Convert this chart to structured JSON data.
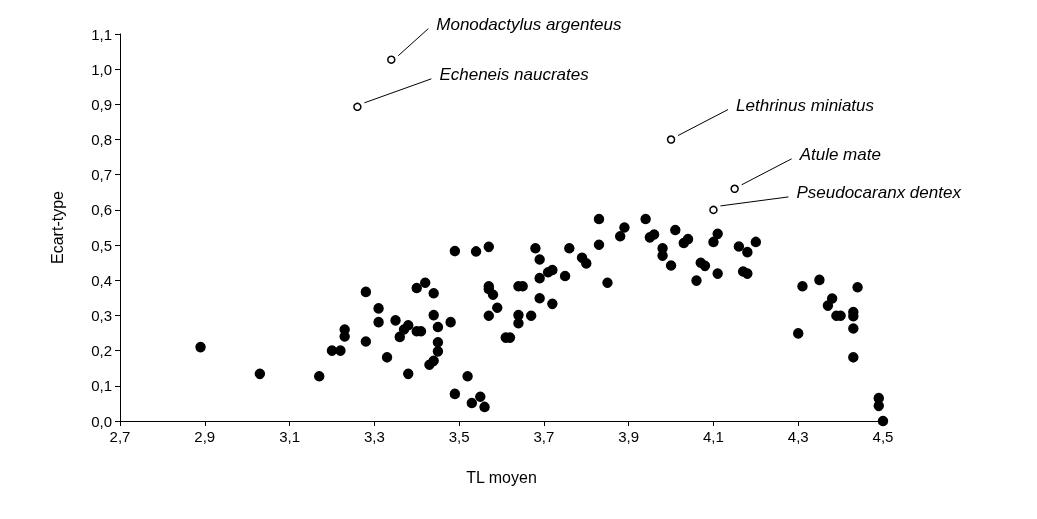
{
  "chart_data": {
    "type": "scatter",
    "xlabel": "TL moyen",
    "ylabel": "Ecart-type",
    "xlim": [
      2.7,
      4.5
    ],
    "ylim": [
      0,
      1.1
    ],
    "xticks": [
      {
        "value": 2.7,
        "label": "2,7"
      },
      {
        "value": 2.9,
        "label": "2,9"
      },
      {
        "value": 3.1,
        "label": "3,1"
      },
      {
        "value": 3.3,
        "label": "3,3"
      },
      {
        "value": 3.5,
        "label": "3,5"
      },
      {
        "value": 3.7,
        "label": "3,7"
      },
      {
        "value": 3.9,
        "label": "3,9"
      },
      {
        "value": 4.1,
        "label": "4,1"
      },
      {
        "value": 4.3,
        "label": "4,3"
      },
      {
        "value": 4.5,
        "label": "4,5"
      }
    ],
    "yticks": [
      {
        "value": 0,
        "label": "0,0"
      },
      {
        "value": 0.1,
        "label": "0,1"
      },
      {
        "value": 0.2,
        "label": "0,2"
      },
      {
        "value": 0.3,
        "label": "0,3"
      },
      {
        "value": 0.4,
        "label": "0,4"
      },
      {
        "value": 0.5,
        "label": "0,5"
      },
      {
        "value": 0.6,
        "label": "0,6"
      },
      {
        "value": 0.7,
        "label": "0,7"
      },
      {
        "value": 0.8,
        "label": "0,8"
      },
      {
        "value": 0.9,
        "label": "0,9"
      },
      {
        "value": 1.0,
        "label": "1,0"
      },
      {
        "value": 1.1,
        "label": "1,1"
      }
    ],
    "grid": false,
    "marker": "circle",
    "series": [
      {
        "color": "#000000",
        "x": [
          2.89,
          3.03,
          3.17,
          3.2,
          3.22,
          3.23,
          3.23,
          3.28,
          3.28,
          3.31,
          3.31,
          3.33,
          3.35,
          3.36,
          3.37,
          3.38,
          3.38,
          3.4,
          3.4,
          3.41,
          3.42,
          3.44,
          3.44,
          3.43,
          3.44,
          3.45,
          3.45,
          3.45,
          3.48,
          3.49,
          3.49,
          3.52,
          3.53,
          3.55,
          3.56,
          3.54,
          3.57,
          3.57,
          3.57,
          3.57,
          3.58,
          3.59,
          3.61,
          3.64,
          3.65,
          3.64,
          3.64,
          3.62,
          3.67,
          3.68,
          3.69,
          3.69,
          3.69,
          3.71,
          3.72,
          3.72,
          3.75,
          3.76,
          3.79,
          3.8,
          3.83,
          3.83,
          3.85,
          3.88,
          3.89,
          3.94,
          3.95,
          3.96,
          3.98,
          3.98,
          4.0,
          4.01,
          4.03,
          4.04,
          4.07,
          4.08,
          4.06,
          4.1,
          4.11,
          4.11,
          4.16,
          4.18,
          4.17,
          4.18,
          4.2,
          4.3,
          4.31,
          4.35,
          4.38,
          4.37,
          4.39,
          4.4,
          4.44,
          4.43,
          4.43,
          4.43,
          4.43,
          4.49,
          4.49,
          4.5
        ],
        "values": [
          0.21,
          0.134,
          0.127,
          0.2,
          0.2,
          0.26,
          0.24,
          0.367,
          0.226,
          0.32,
          0.281,
          0.181,
          0.286,
          0.239,
          0.26,
          0.272,
          0.134,
          0.378,
          0.255,
          0.255,
          0.393,
          0.363,
          0.301,
          0.16,
          0.171,
          0.267,
          0.224,
          0.198,
          0.281,
          0.483,
          0.077,
          0.127,
          0.051,
          0.069,
          0.04,
          0.482,
          0.495,
          0.383,
          0.375,
          0.299,
          0.359,
          0.322,
          0.237,
          0.383,
          0.383,
          0.301,
          0.278,
          0.237,
          0.299,
          0.491,
          0.459,
          0.406,
          0.349,
          0.423,
          0.429,
          0.333,
          0.412,
          0.491,
          0.464,
          0.448,
          0.574,
          0.501,
          0.393,
          0.525,
          0.55,
          0.574,
          0.522,
          0.53,
          0.491,
          0.47,
          0.442,
          0.543,
          0.506,
          0.517,
          0.45,
          0.441,
          0.399,
          0.509,
          0.532,
          0.419,
          0.496,
          0.48,
          0.425,
          0.419,
          0.509,
          0.249,
          0.383,
          0.401,
          0.348,
          0.328,
          0.299,
          0.299,
          0.38,
          0.31,
          0.298,
          0.263,
          0.181,
          0.065,
          0.043,
          0.0
        ]
      },
      {
        "color": "#ffffff",
        "x": [
          3.34,
          3.26,
          4.0,
          4.15,
          4.1
        ],
        "values": [
          1.027,
          0.893,
          0.8,
          0.66,
          0.6
        ]
      }
    ],
    "annotations": [
      {
        "text": "Monodactylus argenteus",
        "x": 3.34,
        "y": 1.027
      },
      {
        "text": "Echeneis naucrates",
        "x": 3.26,
        "y": 0.893
      },
      {
        "text": "Lethrinus miniatus",
        "x": 4.0,
        "y": 0.8
      },
      {
        "text": "Atule mate",
        "x": 4.15,
        "y": 0.66
      },
      {
        "text": "Pseudocaranx dentex",
        "x": 4.1,
        "y": 0.6
      }
    ]
  }
}
